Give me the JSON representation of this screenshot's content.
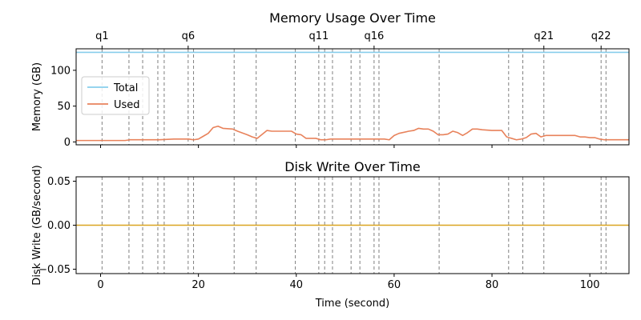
{
  "chart_data": [
    {
      "type": "line",
      "title": "Memory Usage Over Time",
      "xlabel": "",
      "ylabel": "Memory (GB)",
      "xlim": [
        -5,
        108
      ],
      "ylim": [
        -4,
        130
      ],
      "yticks": [
        0,
        50,
        100
      ],
      "xticks": [
        0,
        20,
        40,
        60,
        80,
        100
      ],
      "show_x_tick_labels": false,
      "grid": false,
      "legend": {
        "placement": "center-left",
        "entries": [
          "Total",
          "Used"
        ]
      },
      "query_markers": [
        0.3,
        5.8,
        8.6,
        11.7,
        13.0,
        17.9,
        19.0,
        27.3,
        31.8,
        39.8,
        44.6,
        45.8,
        47.4,
        51.2,
        53.0,
        55.9,
        56.9,
        69.2,
        83.4,
        86.3,
        90.6,
        102.3,
        103.3
      ],
      "query_labels": [
        {
          "x": 0.3,
          "label": "q1"
        },
        {
          "x": 17.9,
          "label": "q6"
        },
        {
          "x": 44.6,
          "label": "q11"
        },
        {
          "x": 55.9,
          "label": "q16"
        },
        {
          "x": 90.6,
          "label": "q21"
        },
        {
          "x": 102.3,
          "label": "q22"
        }
      ],
      "series": [
        {
          "name": "Total",
          "color": "#87ceeb",
          "x": [
            -5,
            108
          ],
          "y": [
            125,
            125
          ]
        },
        {
          "name": "Used",
          "color": "#e8825b",
          "x": [
            -5,
            0,
            5,
            6,
            10,
            12,
            15,
            18,
            19,
            20,
            21,
            22,
            23,
            24,
            25,
            27,
            28,
            30,
            31,
            32,
            34,
            35,
            37,
            39,
            40,
            41,
            42,
            44,
            45,
            46,
            47,
            50,
            52,
            55,
            56,
            58,
            59,
            60,
            61,
            63,
            64,
            65,
            66,
            67,
            68,
            69,
            70,
            71,
            72,
            73,
            74,
            75,
            76,
            77,
            78,
            80,
            82,
            83,
            84,
            85,
            86,
            87,
            88,
            89,
            90,
            91,
            92,
            95,
            97,
            98,
            99,
            100,
            101,
            102,
            103,
            104,
            108
          ],
          "y": [
            2,
            2,
            2,
            3,
            3,
            3,
            4,
            4,
            3,
            4,
            8,
            12,
            20,
            22,
            19,
            18,
            15,
            10,
            7,
            5,
            16,
            15,
            15,
            15,
            11,
            10,
            5,
            5,
            3,
            3,
            4,
            4,
            4,
            4,
            4,
            4,
            3,
            9,
            12,
            15,
            16,
            19,
            18,
            18,
            15,
            10,
            10,
            11,
            15,
            13,
            9,
            13,
            18,
            18,
            17,
            16,
            16,
            7,
            5,
            3,
            4,
            6,
            11,
            12,
            7,
            9,
            9,
            9,
            9,
            7,
            7,
            6,
            6,
            4,
            3,
            3,
            3
          ]
        }
      ]
    },
    {
      "type": "line",
      "title": "Disk Write Over Time",
      "xlabel": "Time (second)",
      "ylabel": "Disk Write (GB/second)",
      "xlim": [
        -5,
        108
      ],
      "ylim": [
        -0.055,
        0.055
      ],
      "yticks": [
        -0.05,
        0.0,
        0.05
      ],
      "ytick_labels": [
        "−0.05",
        "0.00",
        "0.05"
      ],
      "xticks": [
        0,
        20,
        40,
        60,
        80,
        100
      ],
      "grid": false,
      "query_markers": [
        0.3,
        5.8,
        8.6,
        11.7,
        13.0,
        17.9,
        19.0,
        27.3,
        31.8,
        39.8,
        44.6,
        45.8,
        47.4,
        51.2,
        53.0,
        55.9,
        56.9,
        69.2,
        83.4,
        86.3,
        90.6,
        102.3,
        103.3
      ],
      "series": [
        {
          "color": "#daa520",
          "x": [
            -5,
            108
          ],
          "y": [
            0,
            0
          ]
        }
      ]
    }
  ]
}
